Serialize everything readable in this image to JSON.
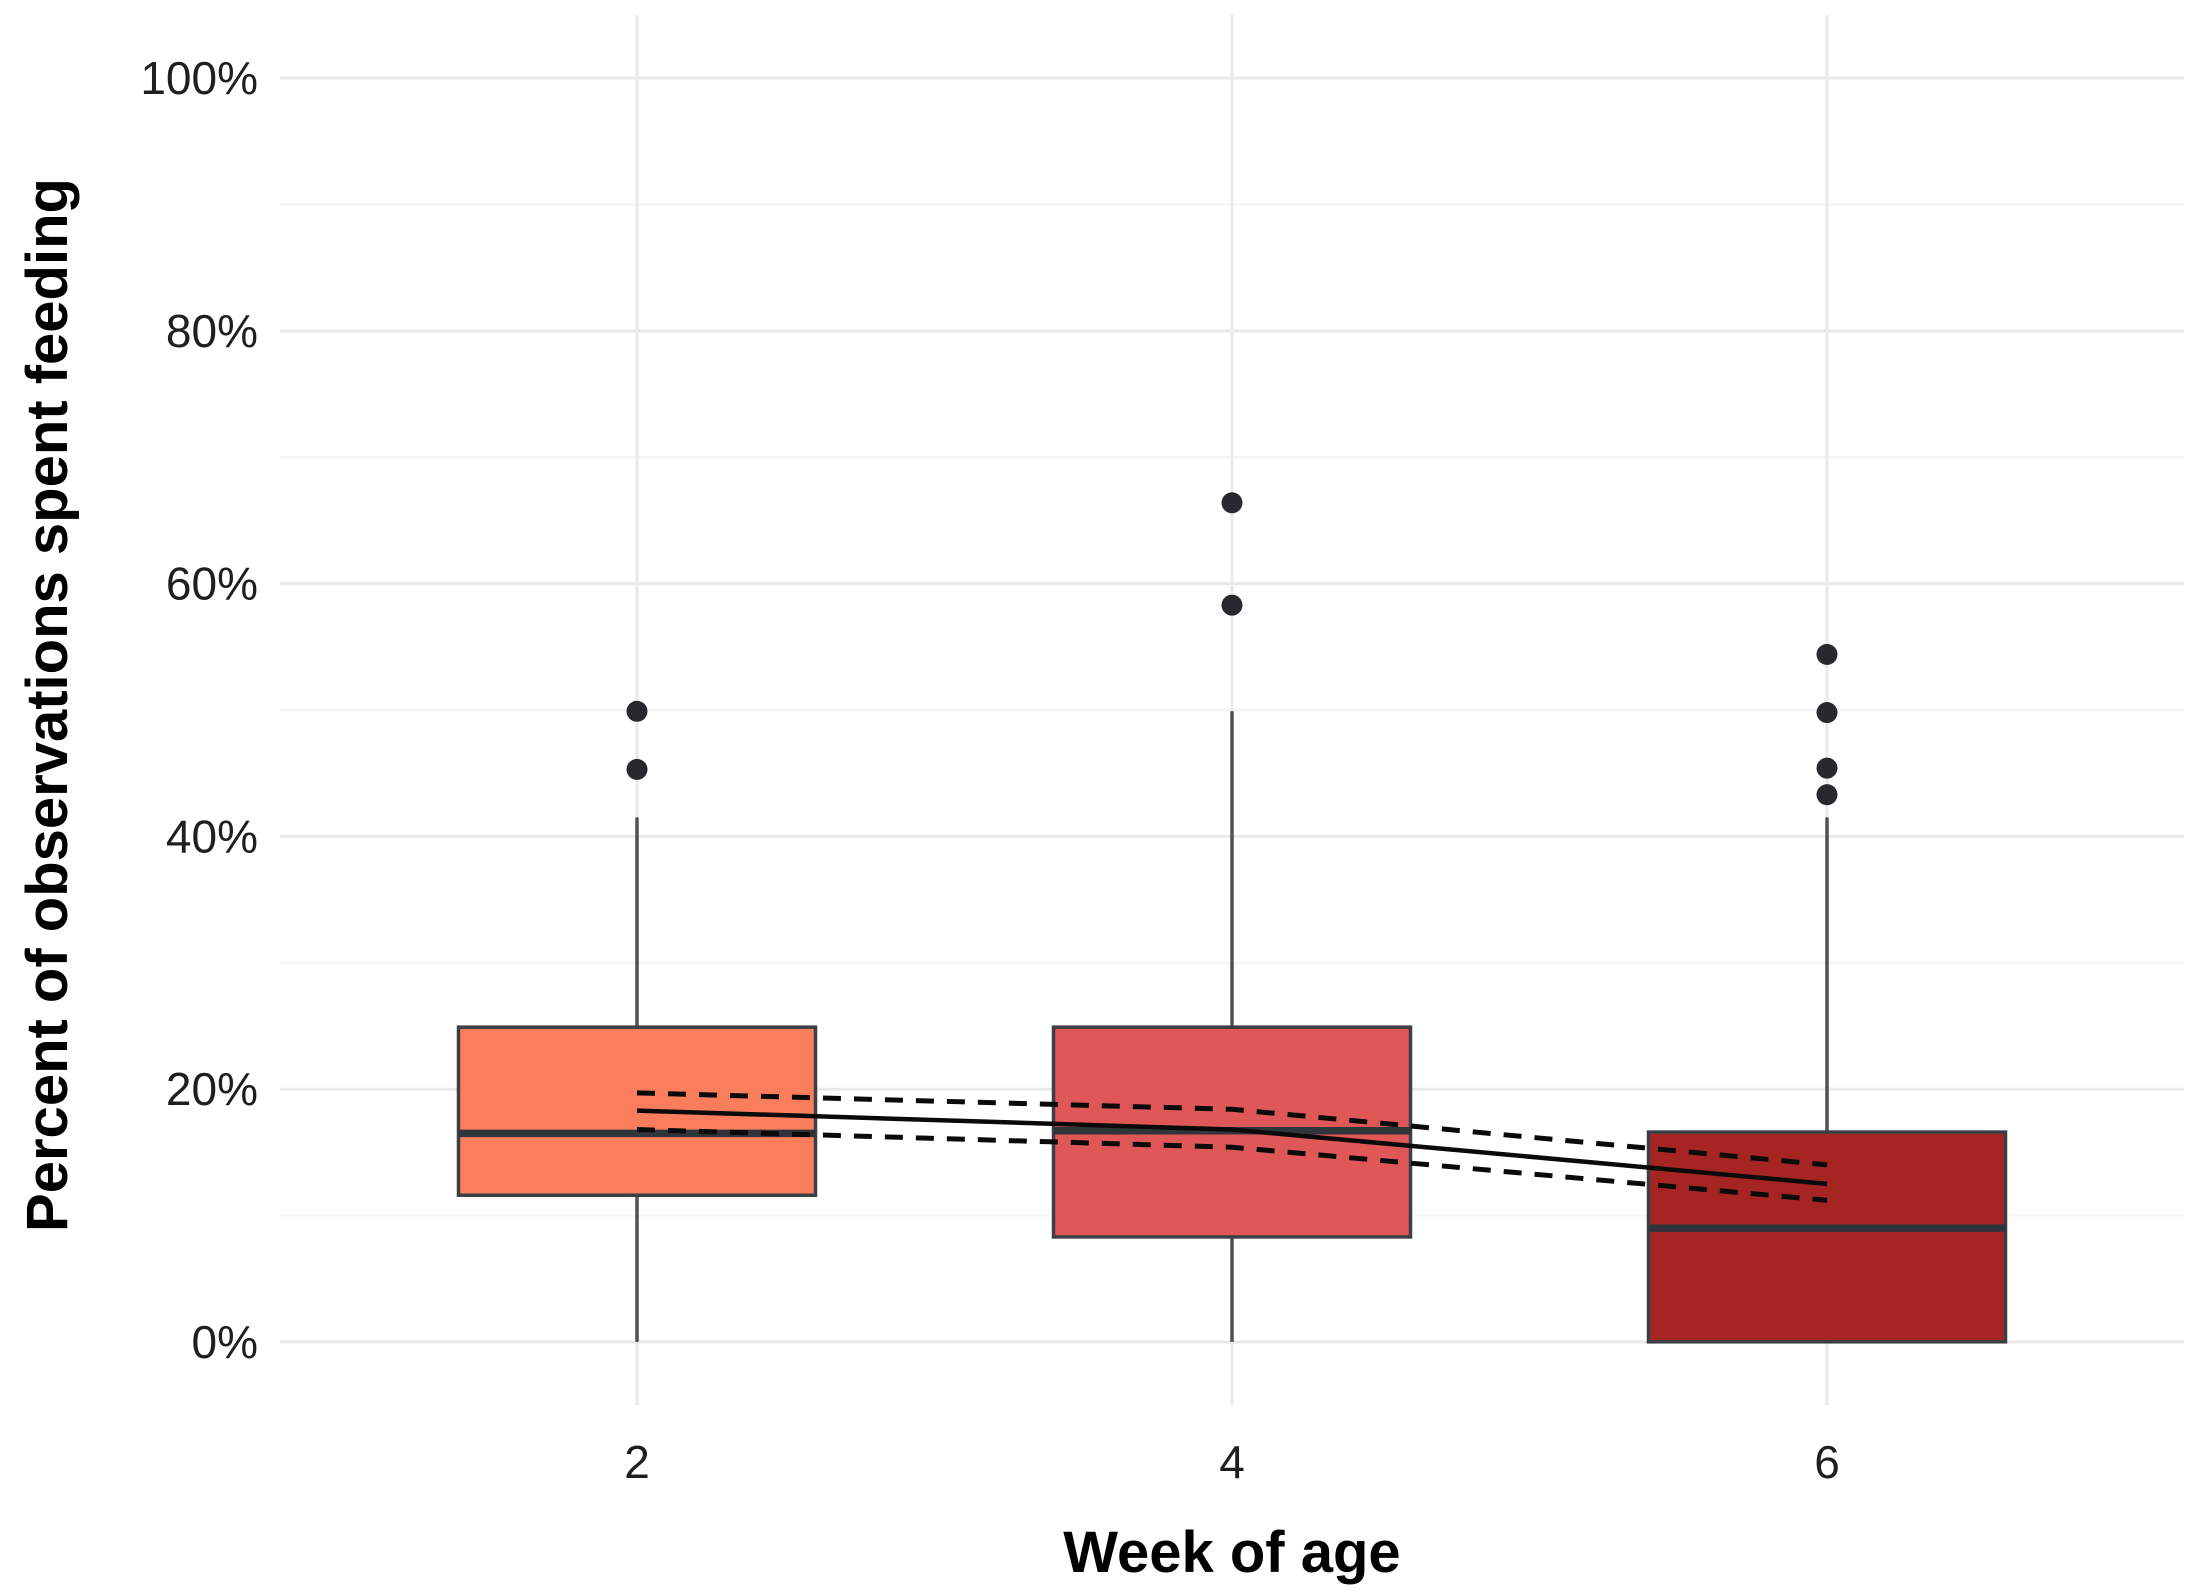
{
  "figure": {
    "x_axis_title": "Week of age",
    "y_axis_title": "Percent of observations spent feeding"
  },
  "chart_data": {
    "type": "boxplot",
    "title": "",
    "xlabel": "Week of age",
    "ylabel": "Percent of observations spent feeding",
    "categories": [
      "2",
      "4",
      "6"
    ],
    "y_ticks": {
      "labels": [
        "0%",
        "20%",
        "40%",
        "60%",
        "80%",
        "100%"
      ],
      "values": [
        0,
        20,
        40,
        60,
        80,
        100
      ]
    },
    "y_minor_gridlines": [
      10,
      30,
      50,
      70,
      90
    ],
    "ylim": [
      -5,
      105
    ],
    "grid": "horizontal major+minor light gray, vertical major at each category",
    "legend": "none",
    "boxes": [
      {
        "category": "2",
        "fill": "#FA7E5B",
        "q1": 11.6,
        "median": 16.5,
        "q3": 24.9,
        "whisker_low": 0,
        "whisker_high": 41.5,
        "outliers": [
          45.3,
          49.9
        ]
      },
      {
        "category": "4",
        "fill": "#E05757",
        "q1": 8.3,
        "median": 16.7,
        "q3": 24.9,
        "whisker_low": 0,
        "whisker_high": 49.9,
        "outliers": [
          58.3,
          66.4
        ]
      },
      {
        "category": "6",
        "fill": "#A62523",
        "q1": 0,
        "median": 9.0,
        "q3": 16.6,
        "whisker_low": 0,
        "whisker_high": 41.5,
        "outliers": [
          43.3,
          45.4,
          49.8,
          54.4
        ]
      }
    ],
    "trend_line": {
      "x": [
        "2",
        "4",
        "6"
      ],
      "mean": [
        18.3,
        16.8,
        12.5
      ],
      "ci_upper": [
        19.7,
        18.4,
        14.0
      ],
      "ci_lower": [
        16.8,
        15.4,
        11.2
      ],
      "mean_style": "solid black",
      "ci_style": "dashed black"
    }
  },
  "style": {
    "background": "#ffffff",
    "gridline_major": "#e9e9e9",
    "gridline_minor": "#f5f5f5",
    "box_border": "#3b3f46",
    "median_color": "#30353b",
    "whisker_color": "#4e5054",
    "outlier_color": "#28292d",
    "trend_color": "#0a0a0a",
    "tick_label_color": "#1f1f1f",
    "axis_title_color": "#000000"
  }
}
